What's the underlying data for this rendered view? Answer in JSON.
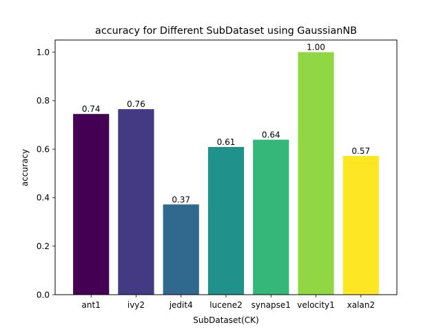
{
  "chart_data": {
    "type": "bar",
    "title": "accuracy for Different SubDataset using GaussianNB",
    "xlabel": "SubDataset(CK)",
    "ylabel": "accuracy",
    "categories": [
      "ant1",
      "ivy2",
      "jedit4",
      "lucene2",
      "synapse1",
      "velocity1",
      "xalan2"
    ],
    "values": [
      0.745,
      0.765,
      0.372,
      0.609,
      0.639,
      1.0,
      0.572
    ],
    "value_labels": [
      "0.74",
      "0.76",
      "0.37",
      "0.61",
      "0.64",
      "1.00",
      "0.57"
    ],
    "colors": [
      "#440154",
      "#443983",
      "#31688e",
      "#21918c",
      "#35b779",
      "#90d743",
      "#fde725"
    ],
    "ylim": [
      0,
      1.05
    ],
    "yticks": [
      0.0,
      0.2,
      0.4,
      0.6,
      0.8,
      1.0
    ],
    "ytick_labels": [
      "0.0",
      "0.2",
      "0.4",
      "0.6",
      "0.8",
      "1.0"
    ],
    "grid": false,
    "legend": "none"
  }
}
